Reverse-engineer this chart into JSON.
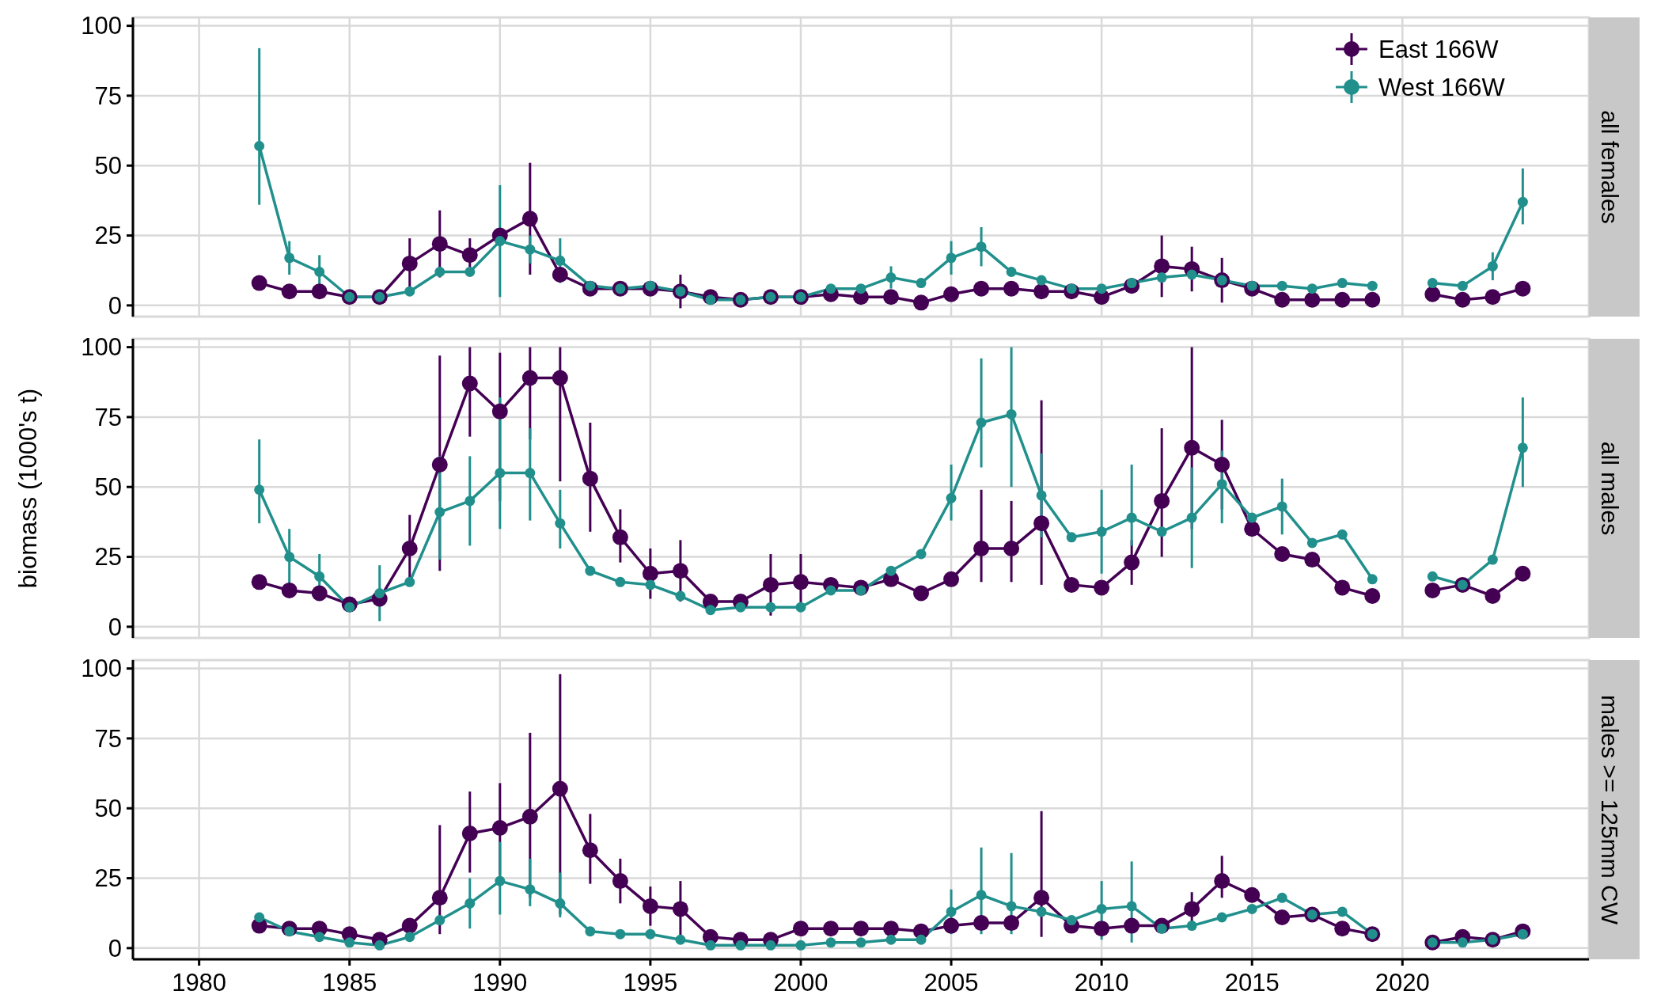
{
  "chart_data": [
    {
      "type": "line",
      "title": "all females",
      "x": [
        1982,
        1983,
        1984,
        1985,
        1986,
        1987,
        1988,
        1989,
        1990,
        1991,
        1992,
        1993,
        1994,
        1995,
        1996,
        1997,
        1998,
        1999,
        2000,
        2001,
        2002,
        2003,
        2004,
        2005,
        2006,
        2007,
        2008,
        2009,
        2010,
        2011,
        2012,
        2013,
        2014,
        2015,
        2016,
        2017,
        2018,
        2019,
        2021,
        2022,
        2023,
        2024
      ],
      "xlim": [
        1977.8,
        2026.2
      ],
      "xticks": [
        1980,
        1985,
        1990,
        1995,
        2000,
        2005,
        2010,
        2015,
        2020
      ],
      "ylim": [
        -4,
        103
      ],
      "yticks": [
        0,
        25,
        50,
        75,
        100
      ],
      "grid": true,
      "legend": "top right",
      "marker": "circle",
      "tick_labels": "y",
      "series": [
        {
          "name": "East 166W",
          "color": "#440154",
          "values": [
            8,
            5,
            5,
            3,
            3,
            15,
            22,
            18,
            25,
            31,
            11,
            6,
            6,
            6,
            5,
            3,
            2,
            3,
            3,
            4,
            3,
            3,
            1,
            4,
            6,
            6,
            5,
            5,
            3,
            7,
            14,
            13,
            9,
            6,
            2,
            2,
            2,
            2,
            4,
            2,
            3,
            6
          ],
          "errors": [
            null,
            null,
            null,
            null,
            null,
            9,
            12,
            6,
            null,
            20,
            null,
            null,
            null,
            null,
            6,
            null,
            null,
            null,
            null,
            null,
            null,
            null,
            null,
            null,
            null,
            null,
            null,
            null,
            null,
            null,
            11,
            8,
            8,
            null,
            null,
            null,
            null,
            null,
            null,
            null,
            null,
            null
          ]
        },
        {
          "name": "West 166W",
          "color": "#21908c",
          "values": [
            57,
            17,
            12,
            3,
            3,
            5,
            12,
            12,
            23,
            20,
            16,
            7,
            6,
            7,
            5,
            2,
            2,
            3,
            3,
            6,
            6,
            10,
            8,
            17,
            21,
            12,
            9,
            6,
            6,
            8,
            10,
            11,
            9,
            7,
            7,
            6,
            8,
            7,
            8,
            7,
            14,
            37
          ],
          "errors": [
            [
              36,
              92
            ],
            6,
            6,
            null,
            null,
            null,
            null,
            null,
            20,
            5,
            8,
            null,
            null,
            null,
            null,
            null,
            null,
            null,
            null,
            null,
            null,
            4,
            null,
            6,
            7,
            null,
            null,
            null,
            null,
            null,
            null,
            null,
            null,
            null,
            null,
            null,
            null,
            null,
            null,
            null,
            5,
            [
              29,
              49
            ]
          ]
        }
      ]
    },
    {
      "type": "line",
      "title": "all males",
      "ylabel": "biomass (1000's t)",
      "x": [
        1982,
        1983,
        1984,
        1985,
        1986,
        1987,
        1988,
        1989,
        1990,
        1991,
        1992,
        1993,
        1994,
        1995,
        1996,
        1997,
        1998,
        1999,
        2000,
        2001,
        2002,
        2003,
        2004,
        2005,
        2006,
        2007,
        2008,
        2009,
        2010,
        2011,
        2012,
        2013,
        2014,
        2015,
        2016,
        2017,
        2018,
        2019,
        2021,
        2022,
        2023,
        2024
      ],
      "xlim": [
        1977.8,
        2026.2
      ],
      "xticks": [
        1980,
        1985,
        1990,
        1995,
        2000,
        2005,
        2010,
        2015,
        2020
      ],
      "ylim": [
        -4,
        103
      ],
      "yticks": [
        0,
        25,
        50,
        75,
        100
      ],
      "grid": true,
      "marker": "circle",
      "tick_labels": "y",
      "series": [
        {
          "color": "#440154",
          "values": [
            16,
            13,
            12,
            8,
            10,
            28,
            58,
            87,
            77,
            89,
            89,
            53,
            32,
            19,
            20,
            9,
            9,
            15,
            16,
            15,
            14,
            17,
            12,
            17,
            28,
            28,
            37,
            15,
            14,
            23,
            45,
            64,
            58,
            35,
            26,
            24,
            14,
            11,
            13,
            15,
            11,
            19
          ],
          "errors": [
            null,
            null,
            null,
            null,
            null,
            12,
            [
              20,
              97
            ],
            [
              68,
              100
            ],
            [
              45,
              98
            ],
            [
              67,
              100
            ],
            [
              52,
              100
            ],
            [
              34,
              73
            ],
            [
              23,
              42
            ],
            9,
            11,
            null,
            null,
            11,
            10,
            null,
            null,
            null,
            null,
            null,
            [
              16,
              49
            ],
            [
              16,
              45
            ],
            [
              15,
              81
            ],
            null,
            null,
            8,
            [
              25,
              71
            ],
            [
              35,
              100
            ],
            [
              42,
              74
            ],
            null,
            null,
            null,
            null,
            null,
            null,
            null,
            null,
            null
          ]
        },
        {
          "color": "#21908c",
          "values": [
            49,
            25,
            18,
            7,
            12,
            16,
            41,
            45,
            55,
            55,
            37,
            20,
            16,
            15,
            11,
            6,
            7,
            7,
            7,
            13,
            13,
            20,
            26,
            46,
            73,
            76,
            47,
            32,
            34,
            39,
            34,
            39,
            51,
            39,
            43,
            30,
            33,
            17,
            18,
            15,
            24,
            64
          ],
          "errors": [
            [
              37,
              67
            ],
            10,
            8,
            null,
            10,
            null,
            [
              24,
              61
            ],
            [
              29,
              61
            ],
            [
              35,
              82
            ],
            [
              38,
              71
            ],
            [
              28,
              49
            ],
            null,
            null,
            null,
            null,
            null,
            null,
            null,
            null,
            null,
            null,
            null,
            null,
            [
              38,
              58
            ],
            [
              57,
              96
            ],
            [
              50,
              100
            ],
            15,
            null,
            15,
            [
              29,
              58
            ],
            null,
            18,
            [
              37,
              63
            ],
            null,
            10,
            null,
            null,
            null,
            null,
            null,
            null,
            [
              50,
              82
            ]
          ]
        }
      ]
    },
    {
      "type": "line",
      "title": "males >= 125mm CW",
      "x": [
        1982,
        1983,
        1984,
        1985,
        1986,
        1987,
        1988,
        1989,
        1990,
        1991,
        1992,
        1993,
        1994,
        1995,
        1996,
        1997,
        1998,
        1999,
        2000,
        2001,
        2002,
        2003,
        2004,
        2005,
        2006,
        2007,
        2008,
        2009,
        2010,
        2011,
        2012,
        2013,
        2014,
        2015,
        2016,
        2017,
        2018,
        2019,
        2021,
        2022,
        2023,
        2024
      ],
      "xlim": [
        1977.8,
        2026.2
      ],
      "xticks": [
        1980,
        1985,
        1990,
        1995,
        2000,
        2005,
        2010,
        2015,
        2020
      ],
      "ylim": [
        -4,
        103
      ],
      "yticks": [
        0,
        25,
        50,
        75,
        100
      ],
      "grid": true,
      "marker": "circle",
      "series": [
        {
          "color": "#440154",
          "values": [
            8,
            7,
            7,
            5,
            3,
            8,
            18,
            41,
            43,
            47,
            57,
            35,
            24,
            15,
            14,
            4,
            3,
            3,
            7,
            7,
            7,
            7,
            6,
            8,
            9,
            9,
            18,
            8,
            7,
            8,
            8,
            14,
            24,
            19,
            11,
            12,
            7,
            5,
            2,
            4,
            3,
            6
          ],
          "errors": [
            null,
            null,
            null,
            null,
            null,
            null,
            [
              5,
              44
            ],
            [
              27,
              56
            ],
            [
              26,
              59
            ],
            [
              18,
              77
            ],
            [
              12,
              98
            ],
            [
              23,
              48
            ],
            8,
            7,
            10,
            null,
            null,
            null,
            null,
            null,
            null,
            null,
            null,
            null,
            null,
            null,
            [
              4,
              49
            ],
            null,
            null,
            null,
            null,
            6,
            [
              18,
              33
            ],
            null,
            null,
            null,
            null,
            null,
            null,
            null,
            null,
            null
          ]
        },
        {
          "color": "#21908c",
          "values": [
            11,
            6,
            4,
            2,
            1,
            4,
            10,
            16,
            24,
            21,
            16,
            6,
            5,
            5,
            3,
            1,
            1,
            1,
            1,
            2,
            2,
            3,
            3,
            13,
            19,
            15,
            13,
            10,
            14,
            15,
            7,
            8,
            11,
            14,
            18,
            12,
            13,
            5,
            2,
            2,
            3,
            5
          ],
          "errors": [
            null,
            null,
            null,
            null,
            null,
            null,
            null,
            9,
            [
              12,
              38
            ],
            [
              15,
              32
            ],
            [
              11,
              27
            ],
            null,
            null,
            null,
            null,
            null,
            null,
            null,
            null,
            null,
            null,
            null,
            null,
            8,
            [
              5,
              36
            ],
            [
              5,
              34
            ],
            null,
            null,
            [
              3,
              24
            ],
            [
              2,
              31
            ],
            null,
            null,
            null,
            null,
            null,
            null,
            null,
            null,
            null,
            null,
            null,
            null
          ]
        }
      ]
    }
  ]
}
